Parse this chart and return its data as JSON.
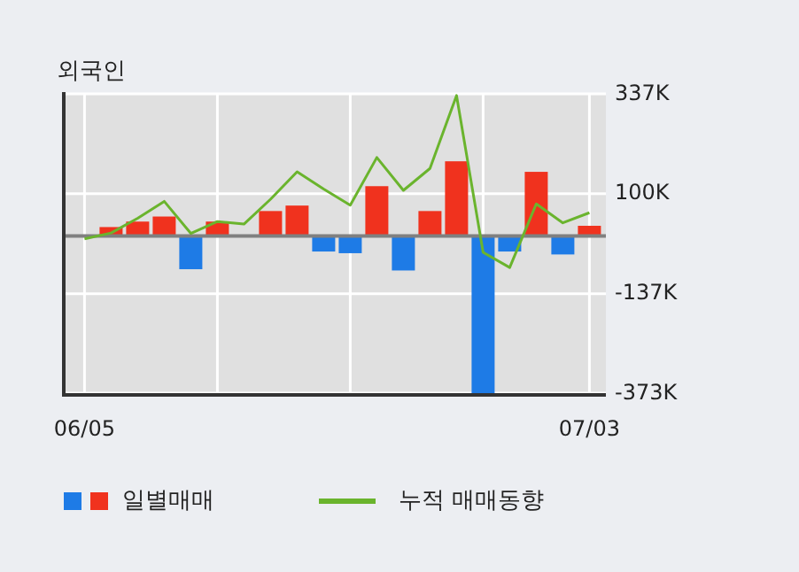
{
  "chart_data": {
    "type": "bar",
    "title": "외국인",
    "categories": [
      "06/05",
      null,
      null,
      null,
      null,
      null,
      null,
      null,
      null,
      null,
      null,
      null,
      null,
      null,
      null,
      null,
      null,
      null,
      null,
      "07/03"
    ],
    "series": [
      {
        "name": "일별매매",
        "colors": [
          "#1e7be6",
          "#f0321e",
          "#f0321e",
          "#f0321e",
          "#1e7be6",
          "#f0321e",
          "#f0321e",
          "#f0321e",
          "#f0321e",
          "#1e7be6",
          "#1e7be6",
          "#f0321e",
          "#1e7be6",
          "#f0321e",
          "#f0321e",
          "#1e7be6",
          "#1e7be6",
          "#f0321e",
          "#1e7be6",
          "#f0321e"
        ],
        "values": [
          null,
          21,
          34,
          46,
          -79,
          34,
          0,
          59,
          72,
          -37,
          -41,
          118,
          -82,
          59,
          177,
          -373,
          -37,
          152,
          -44,
          24
        ]
      },
      {
        "name": "누적 매매동향",
        "type": "line",
        "color": "#6ab42d",
        "values": [
          -7,
          7,
          42,
          82,
          6,
          34,
          28,
          87,
          152,
          111,
          73,
          186,
          108,
          160,
          333,
          -39,
          -75,
          76,
          31,
          55
        ]
      }
    ],
    "ylim": [
      -373,
      337
    ],
    "yticks": [
      {
        "value": 337,
        "label": "337K"
      },
      {
        "value": 100,
        "label": "100K"
      },
      {
        "value": -137,
        "label": "-137K"
      },
      {
        "value": -373,
        "label": "-373K"
      }
    ],
    "ref_lines": [
      {
        "axis": "y",
        "value": 0,
        "color": "#808080"
      }
    ],
    "grid": true,
    "legend": "bottom"
  }
}
